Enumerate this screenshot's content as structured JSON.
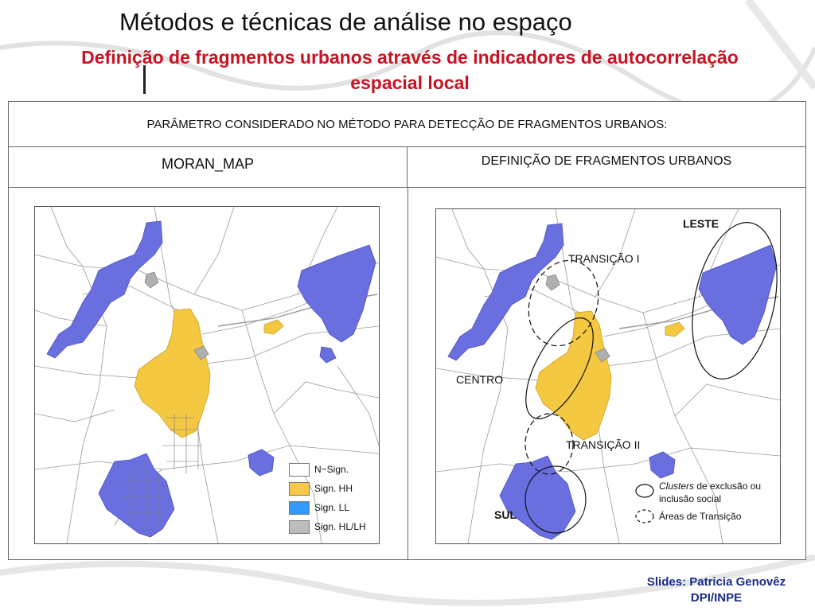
{
  "title": "Métodos e técnicas de análise no espaço",
  "subtitle": "Definição de fragmentos urbanos através de indicadores de autocorrelação espacial local",
  "table": {
    "header": "PARÂMETRO CONSIDERADO NO MÉTODO PARA DETECÇÃO DE FRAGMENTOS URBANOS:",
    "col_left": "MORAN_MAP",
    "col_right": "DEFINIÇÃO DE FRAGMENTOS URBANOS"
  },
  "legend_left": {
    "items": [
      {
        "label": "N~Sign.",
        "color": "#ffffff"
      },
      {
        "label": "Sign. HH",
        "color": "#f7c948"
      },
      {
        "label": "Sign. LL",
        "color": "#3399ff"
      },
      {
        "label": "Sign. HL/LH",
        "color": "#bdbdbd"
      }
    ]
  },
  "map_right": {
    "labels": {
      "leste": "LESTE",
      "transicao1": "TRANSIÇÃO I",
      "centro": "CENTRO",
      "transicao2": "TRANSIÇÃO II",
      "sul": "SUL"
    },
    "legend": {
      "clusters_em": "Clusters",
      "clusters_rest": " de exclusão ou inclusão social",
      "transicao": "Áreas de Transição"
    }
  },
  "colors": {
    "ll_fill": "#6a6fe0",
    "hh_fill": "#f5c842",
    "hl_fill": "#b0b0b0",
    "subtitle": "#cc1122",
    "credits": "#1a2a8a"
  },
  "credits": {
    "line1": "Slides: Patricia Genovêz",
    "line2": "DPI/INPE"
  }
}
